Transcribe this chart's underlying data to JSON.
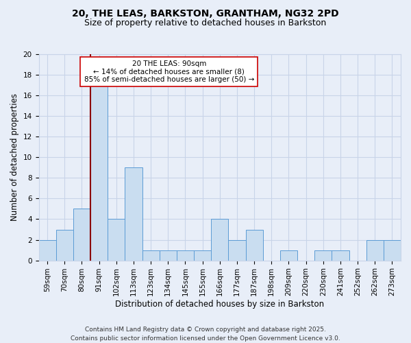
{
  "title": "20, THE LEAS, BARKSTON, GRANTHAM, NG32 2PD",
  "subtitle": "Size of property relative to detached houses in Barkston",
  "xlabel": "Distribution of detached houses by size in Barkston",
  "ylabel": "Number of detached properties",
  "categories": [
    "59sqm",
    "70sqm",
    "80sqm",
    "91sqm",
    "102sqm",
    "113sqm",
    "123sqm",
    "134sqm",
    "145sqm",
    "155sqm",
    "166sqm",
    "177sqm",
    "187sqm",
    "198sqm",
    "209sqm",
    "220sqm",
    "230sqm",
    "241sqm",
    "252sqm",
    "262sqm",
    "273sqm"
  ],
  "values": [
    2,
    3,
    5,
    17,
    4,
    9,
    1,
    1,
    1,
    1,
    4,
    2,
    3,
    0,
    1,
    0,
    1,
    1,
    0,
    2,
    2
  ],
  "bar_color": "#c9ddf0",
  "bar_edge_color": "#5b9bd5",
  "highlight_line_index": 3,
  "highlight_line_color": "#8b0000",
  "ylim": [
    0,
    20
  ],
  "yticks": [
    0,
    2,
    4,
    6,
    8,
    10,
    12,
    14,
    16,
    18,
    20
  ],
  "grid_color": "#c8d4e8",
  "background_color": "#e8eef8",
  "annotation_box_text_line1": "20 THE LEAS: 90sqm",
  "annotation_box_text_line2": "← 14% of detached houses are smaller (8)",
  "annotation_box_text_line3": "85% of semi-detached houses are larger (50) →",
  "footer_line1": "Contains HM Land Registry data © Crown copyright and database right 2025.",
  "footer_line2": "Contains public sector information licensed under the Open Government Licence v3.0.",
  "title_fontsize": 10,
  "subtitle_fontsize": 9,
  "axis_label_fontsize": 8.5,
  "tick_fontsize": 7.5,
  "footer_fontsize": 6.5,
  "annotation_fontsize": 7.5
}
